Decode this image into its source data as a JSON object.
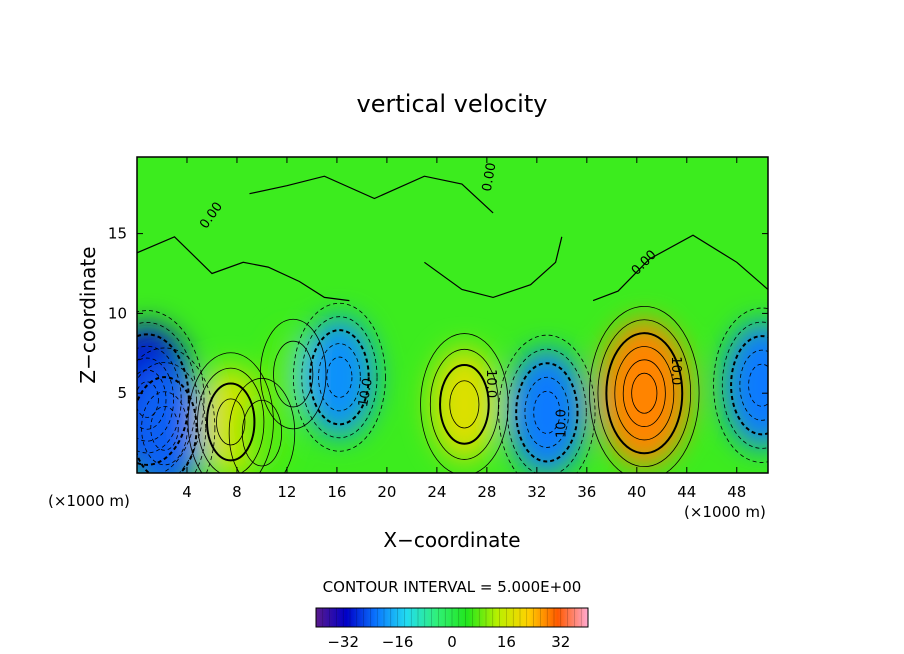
{
  "chart_data": {
    "type": "heatmap",
    "title": "vertical velocity",
    "xlabel": "X−coordinate",
    "ylabel": "Z−coordinate",
    "x_unit_left": "(×1000 m)",
    "x_unit_right": "(×1000 m)",
    "xlim": [
      0,
      50.5
    ],
    "ylim": [
      0,
      19.8
    ],
    "xticks": [
      "4",
      "8",
      "12",
      "16",
      "20",
      "24",
      "28",
      "32",
      "36",
      "40",
      "44",
      "48"
    ],
    "yticks": [
      "5",
      "10",
      "15"
    ],
    "contour_interval_text": "CONTOUR INTERVAL = 5.000E+00",
    "contour_labels": [
      "0.00",
      "0.00",
      "0.00",
      "10.0",
      "10.0",
      "10.0",
      "10.0"
    ],
    "colorbar": {
      "range": [
        -40,
        40
      ],
      "ticks": [
        "−32",
        "−16",
        "0",
        "16",
        "32"
      ],
      "colors": [
        "#5a1a8c",
        "#0000c8",
        "#0a78ff",
        "#22dcf0",
        "#30f078",
        "#22e61c",
        "#b8f000",
        "#ffd200",
        "#ff5a00",
        "#ffaad2"
      ]
    },
    "cells": [
      {
        "x": 0.8,
        "z": 4.6,
        "w": -30
      },
      {
        "x": 2.2,
        "z": 2.8,
        "w": -24
      },
      {
        "x": 7.5,
        "z": 3.2,
        "w": 17
      },
      {
        "x": 10.0,
        "z": 2.5,
        "w": 8
      },
      {
        "x": 12.5,
        "z": 6.2,
        "w": 8
      },
      {
        "x": 16.2,
        "z": 6.0,
        "w": -20
      },
      {
        "x": 26.2,
        "z": 4.3,
        "w": 18
      },
      {
        "x": 32.8,
        "z": 3.8,
        "w": -22
      },
      {
        "x": 40.6,
        "z": 5.0,
        "w": 28
      },
      {
        "x": 50.0,
        "z": 5.5,
        "w": -22
      }
    ]
  }
}
